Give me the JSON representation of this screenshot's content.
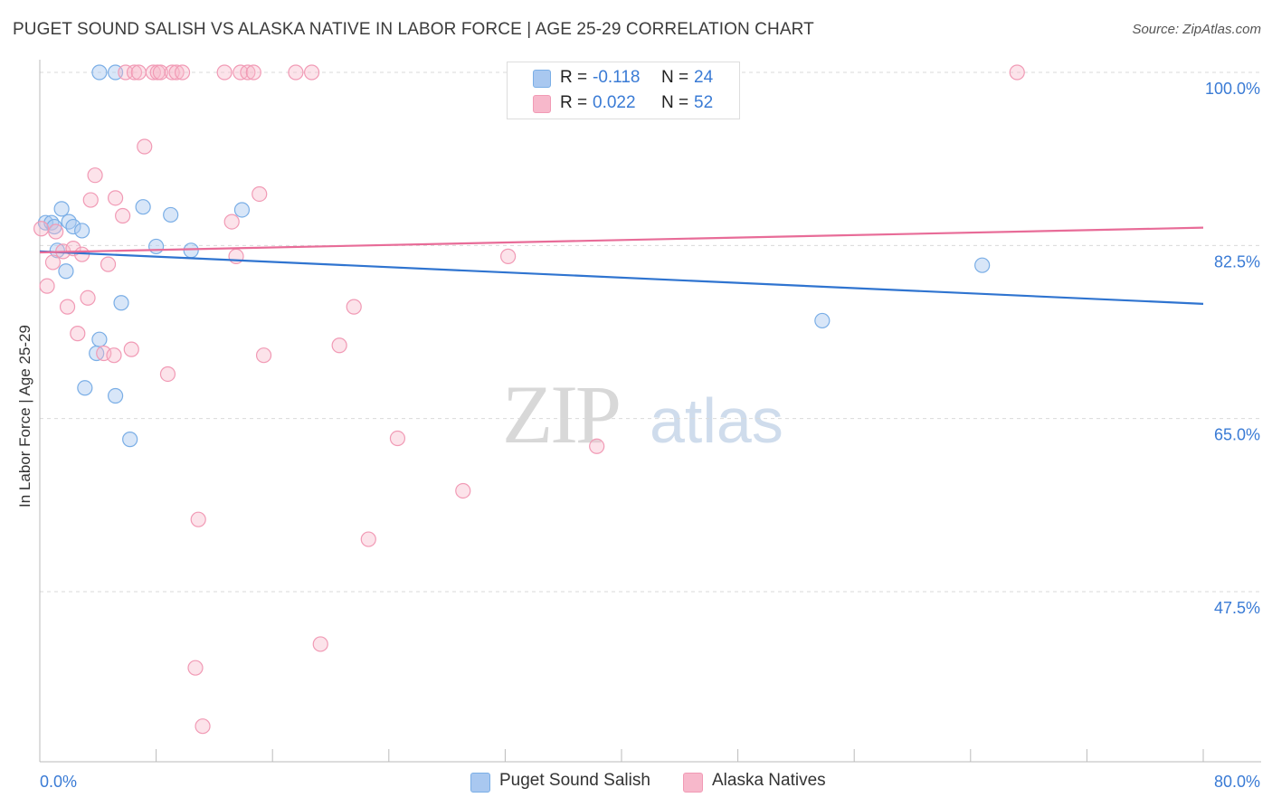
{
  "title": "PUGET SOUND SALISH VS ALASKA NATIVE IN LABOR FORCE | AGE 25-29 CORRELATION CHART",
  "source": "Source: ZipAtlas.com",
  "watermark": {
    "zip": "ZIP",
    "atlas": "atlas"
  },
  "stats": {
    "rows": [
      {
        "r_label": "R =",
        "r_value": "-0.118",
        "n_label": "N =",
        "n_value": "24",
        "color": "#a9c8f0"
      },
      {
        "r_label": "R =",
        "r_value": "0.022",
        "n_label": "N =",
        "n_value": "52",
        "color": "#f7b8cb"
      }
    ]
  },
  "legend": {
    "items": [
      {
        "label": "Puget Sound Salish",
        "color": "#a9c8f0"
      },
      {
        "label": "Alaska Natives",
        "color": "#f7b8cb"
      }
    ]
  },
  "chart_data": {
    "type": "scatter",
    "title": "PUGET SOUND SALISH VS ALASKA NATIVE IN LABOR FORCE | AGE 25-29 CORRELATION CHART",
    "xlabel": "",
    "ylabel": "In Labor Force | Age 25-29",
    "xlim": [
      0,
      80
    ],
    "ylim": [
      31,
      102
    ],
    "x_tick_labels": [
      "0.0%",
      "80.0%"
    ],
    "y_ticks": [
      100,
      82.5,
      65,
      47.5
    ],
    "y_tick_labels": [
      "100.0%",
      "82.5%",
      "65.0%",
      "47.5%"
    ],
    "series": [
      {
        "name": "Puget Sound Salish",
        "color": "#7aaee6",
        "fill": "rgba(169,200,240,0.45)",
        "points": [
          [
            0.4,
            84.8
          ],
          [
            0.8,
            84.8
          ],
          [
            1.0,
            84.4
          ],
          [
            1.2,
            82.0
          ],
          [
            1.5,
            86.2
          ],
          [
            1.8,
            79.9
          ],
          [
            2.0,
            84.9
          ],
          [
            2.3,
            84.4
          ],
          [
            2.9,
            84.0
          ],
          [
            3.1,
            68.1
          ],
          [
            3.9,
            71.6
          ],
          [
            4.1,
            73.0
          ],
          [
            4.1,
            100.0
          ],
          [
            5.2,
            67.3
          ],
          [
            5.2,
            100.0
          ],
          [
            5.6,
            76.7
          ],
          [
            6.2,
            62.9
          ],
          [
            7.1,
            86.4
          ],
          [
            8.0,
            82.4
          ],
          [
            9.0,
            85.6
          ],
          [
            10.4,
            82.0
          ],
          [
            13.9,
            86.1
          ],
          [
            53.8,
            74.9
          ],
          [
            64.8,
            80.5
          ]
        ],
        "trend": {
          "x": [
            0,
            80
          ],
          "y": [
            81.9,
            76.6
          ]
        }
      },
      {
        "name": "Alaska Natives",
        "color": "#f19ab5",
        "fill": "rgba(247,184,203,0.4)",
        "points": [
          [
            0.1,
            84.2
          ],
          [
            0.5,
            78.4
          ],
          [
            0.9,
            80.8
          ],
          [
            1.1,
            83.9
          ],
          [
            1.6,
            81.9
          ],
          [
            1.9,
            76.3
          ],
          [
            2.3,
            82.2
          ],
          [
            2.6,
            73.6
          ],
          [
            2.9,
            81.6
          ],
          [
            3.3,
            77.2
          ],
          [
            3.5,
            87.1
          ],
          [
            3.8,
            89.6
          ],
          [
            4.4,
            71.6
          ],
          [
            4.7,
            80.6
          ],
          [
            5.1,
            71.4
          ],
          [
            5.2,
            87.3
          ],
          [
            5.7,
            85.5
          ],
          [
            5.9,
            100.0
          ],
          [
            6.5,
            100.0
          ],
          [
            6.3,
            72.0
          ],
          [
            6.8,
            100.0
          ],
          [
            7.2,
            92.5
          ],
          [
            7.8,
            100.0
          ],
          [
            8.1,
            100.0
          ],
          [
            8.3,
            100.0
          ],
          [
            8.8,
            69.5
          ],
          [
            9.1,
            100.0
          ],
          [
            9.4,
            100.0
          ],
          [
            9.8,
            100.0
          ],
          [
            10.7,
            39.8
          ],
          [
            10.9,
            54.8
          ],
          [
            11.2,
            33.9
          ],
          [
            12.7,
            100.0
          ],
          [
            13.2,
            84.9
          ],
          [
            13.5,
            81.4
          ],
          [
            13.8,
            100.0
          ],
          [
            14.3,
            100.0
          ],
          [
            14.7,
            100.0
          ],
          [
            15.1,
            87.7
          ],
          [
            15.4,
            71.4
          ],
          [
            17.6,
            100.0
          ],
          [
            18.7,
            100.0
          ],
          [
            19.3,
            42.2
          ],
          [
            20.6,
            72.4
          ],
          [
            21.6,
            76.3
          ],
          [
            22.6,
            52.8
          ],
          [
            24.6,
            63.0
          ],
          [
            29.1,
            57.7
          ],
          [
            32.2,
            81.4
          ],
          [
            37.8,
            100.0
          ],
          [
            38.3,
            62.2
          ],
          [
            67.2,
            100.0
          ]
        ],
        "trend": {
          "x": [
            0,
            80
          ],
          "y": [
            81.8,
            84.3
          ]
        }
      }
    ]
  }
}
